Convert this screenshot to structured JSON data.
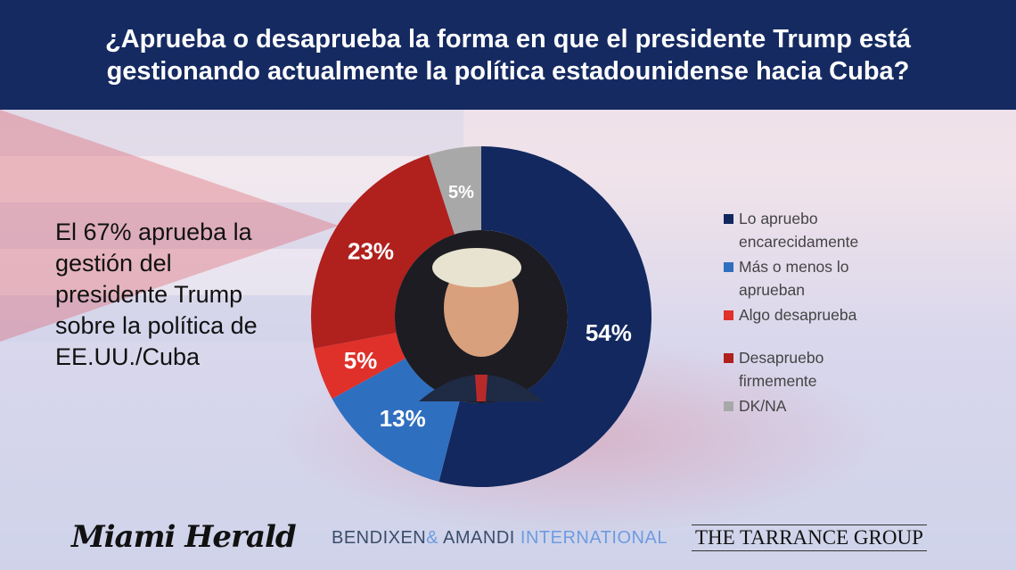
{
  "header": {
    "title": "¿Aprueba o desaprueba la forma en que el presidente Trump está gestionando actualmente la política estadounidense hacia Cuba?"
  },
  "summary": "El 67% aprueba la gestión del presidente Trump sobre la política de EE.UU./Cuba",
  "chart_data": {
    "type": "pie",
    "donut": true,
    "title": "¿Aprueba o desaprueba la forma en que el presidente Trump está gestionando actualmente la política estadounidense hacia Cuba?",
    "categories": [
      "Lo apruebo encarecidamente",
      "Más o menos lo aprueban",
      "Algo desaprueba",
      "Desapruebo firmemente",
      "DK/NA"
    ],
    "values": [
      54,
      13,
      5,
      23,
      5
    ],
    "data_labels": [
      "54%",
      "13%",
      "5%",
      "23%",
      "5%"
    ],
    "colors": [
      "#12285f",
      "#2f6fbf",
      "#e0302a",
      "#b0201d",
      "#a8a8a8"
    ],
    "legend_position": "right"
  },
  "logos": {
    "miami_herald": "Miami Herald",
    "bendixen_1": "BENDIXEN",
    "bendixen_amp": "&",
    "bendixen_2": "AMANDI",
    "bendixen_3": "INTERNATIONAL",
    "tarrance": "THE TARRANCE GROUP"
  }
}
